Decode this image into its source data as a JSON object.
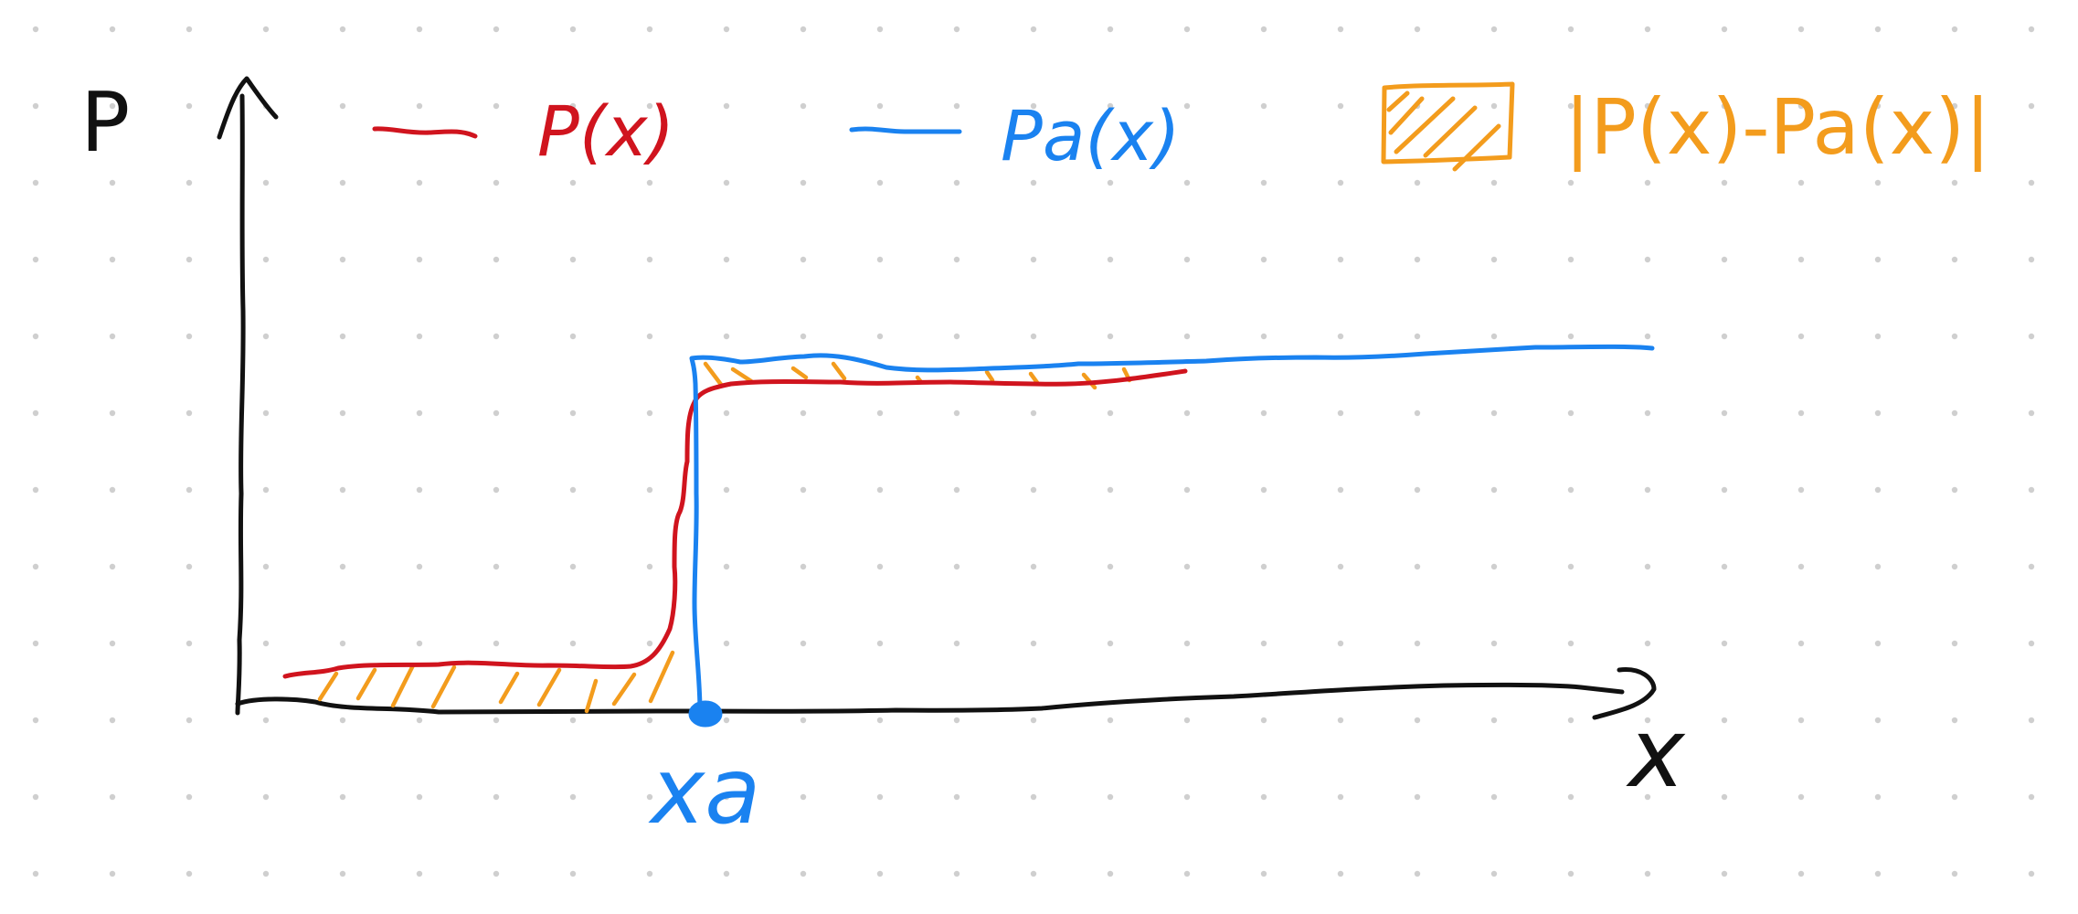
{
  "axes": {
    "y_label": "P",
    "x_label": "x"
  },
  "legend": {
    "red_label": "P(x)",
    "blue_label": "Pa(x)",
    "orange_label": "|P(x)-Pa(x)|"
  },
  "marker": {
    "label": "xa"
  },
  "colors": {
    "black": "#111111",
    "red": "#d0141e",
    "blue": "#1a82f0",
    "orange": "#f39c1d",
    "dots": "#cfcfcf"
  }
}
